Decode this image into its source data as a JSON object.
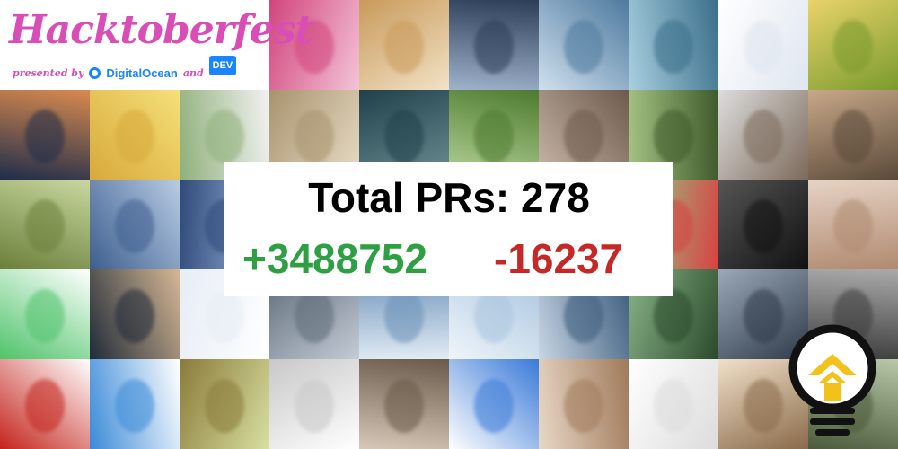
{
  "logo": {
    "title": "Hacktoberfest",
    "presented_by": "presented by",
    "sponsor_1": "DigitalOcean",
    "and": "and",
    "sponsor_2": "DEV"
  },
  "stats": {
    "total_label": "Total PRs:",
    "total_value": "278",
    "additions": "+3488752",
    "deletions": "-16237"
  },
  "colors": {
    "title_pink": "#d94db6",
    "sponsor_blue": "#1a85ff",
    "additions_green": "#2ea043",
    "deletions_red": "#c62828",
    "bulb_yellow": "#f2c21b"
  },
  "icons": {
    "badge": "lightbulb-icon"
  }
}
